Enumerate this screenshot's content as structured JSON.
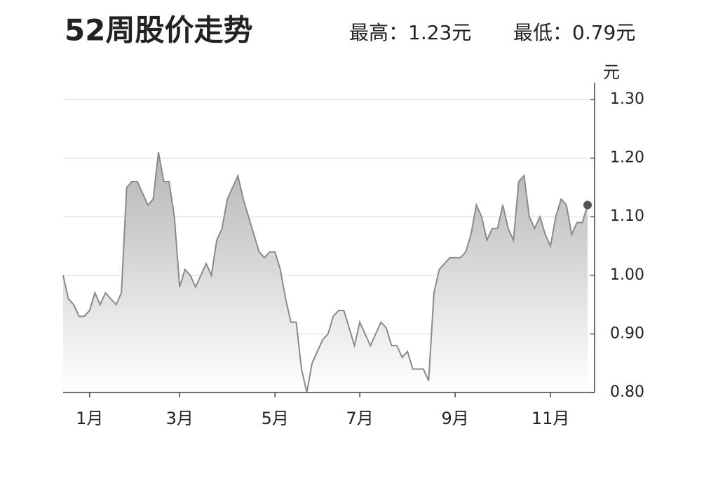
{
  "chart_data": {
    "type": "line",
    "title": "52周股价走势",
    "annotations": [
      "最高：1.23元",
      "最低：0.79元"
    ],
    "y_unit": "元",
    "categories": [
      null,
      null,
      null,
      null,
      null,
      "1月",
      null,
      null,
      null,
      null,
      null,
      null,
      null,
      null,
      null,
      null,
      null,
      null,
      null,
      null,
      null,
      null,
      "3月",
      null,
      null,
      null,
      null,
      null,
      null,
      null,
      null,
      null,
      null,
      null,
      null,
      null,
      null,
      null,
      null,
      null,
      "5月",
      null,
      null,
      null,
      null,
      null,
      null,
      null,
      null,
      null,
      null,
      null,
      null,
      null,
      null,
      null,
      "7月",
      null,
      null,
      null,
      null,
      null,
      null,
      null,
      null,
      null,
      null,
      null,
      null,
      null,
      null,
      null,
      null,
      null,
      "9月",
      null,
      null,
      null,
      null,
      null,
      null,
      null,
      null,
      null,
      null,
      null,
      null,
      null,
      null,
      null,
      null,
      null,
      "11月",
      null,
      null,
      null,
      null,
      null,
      null,
      null
    ],
    "series": [
      {
        "color": "#8a8a8a",
        "values": [
          1.0,
          0.96,
          0.95,
          0.93,
          0.93,
          0.94,
          0.97,
          0.95,
          0.97,
          0.96,
          0.95,
          0.97,
          1.15,
          1.16,
          1.16,
          1.14,
          1.12,
          1.13,
          1.21,
          1.16,
          1.16,
          1.1,
          0.98,
          1.01,
          1.0,
          0.98,
          1.0,
          1.02,
          1.0,
          1.06,
          1.08,
          1.13,
          1.15,
          1.17,
          1.13,
          1.1,
          1.07,
          1.04,
          1.03,
          1.04,
          1.04,
          1.01,
          0.96,
          0.92,
          0.92,
          0.84,
          0.8,
          0.85,
          0.87,
          0.89,
          0.9,
          0.93,
          0.94,
          0.94,
          0.91,
          0.88,
          0.92,
          0.9,
          0.88,
          0.9,
          0.92,
          0.91,
          0.88,
          0.88,
          0.86,
          0.87,
          0.84,
          0.84,
          0.84,
          0.82,
          0.97,
          1.01,
          1.02,
          1.03,
          1.03,
          1.03,
          1.04,
          1.07,
          1.12,
          1.1,
          1.06,
          1.08,
          1.08,
          1.12,
          1.08,
          1.06,
          1.16,
          1.17,
          1.1,
          1.08,
          1.1,
          1.07,
          1.05,
          1.1,
          1.13,
          1.12,
          1.07,
          1.09,
          1.09,
          1.12
        ]
      }
    ],
    "ylim": [
      0.8,
      1.3
    ],
    "yticks": [
      {
        "value": 0.8,
        "label": "0.80"
      },
      {
        "value": 0.9,
        "label": "0.90"
      },
      {
        "value": 1.0,
        "label": "1.00"
      },
      {
        "value": 1.1,
        "label": "1.10"
      },
      {
        "value": 1.2,
        "label": "1.20"
      },
      {
        "value": 1.3,
        "label": "1.30"
      }
    ],
    "grid": true
  }
}
